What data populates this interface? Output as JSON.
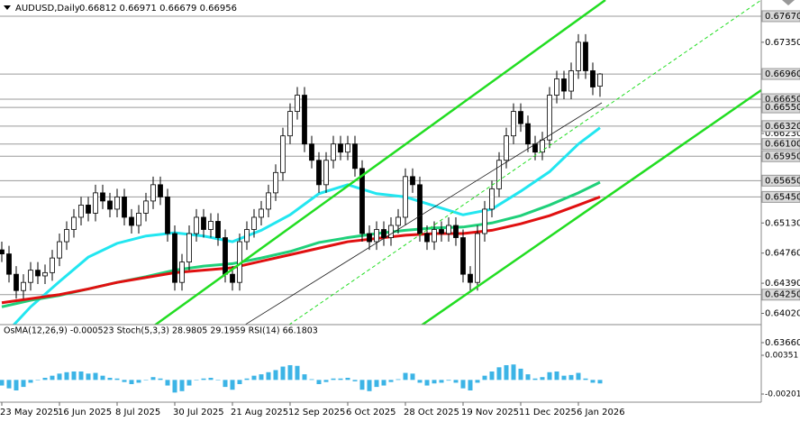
{
  "chart_data": [
    {
      "type": "candlestick",
      "title": "AUDUSD,Daily",
      "subtitle": "0.66812 0.66971 0.66679 0.66956",
      "categories": [
        "23 May 2025",
        null,
        null,
        null,
        null,
        null,
        null,
        null,
        "16 Jun 2025",
        null,
        null,
        null,
        null,
        null,
        null,
        null,
        "8 Jul 2025",
        null,
        null,
        null,
        null,
        null,
        null,
        null,
        "30 Jul 2025",
        null,
        null,
        null,
        null,
        null,
        null,
        null,
        "21 Aug 2025",
        null,
        null,
        null,
        null,
        null,
        null,
        null,
        "12 Sep 2025",
        null,
        null,
        null,
        null,
        null,
        null,
        null,
        "6 Oct 2025",
        null,
        null,
        null,
        null,
        null,
        null,
        null,
        "28 Oct 2025",
        null,
        null,
        null,
        null,
        null,
        null,
        null,
        "19 Nov 2025",
        null,
        null,
        null,
        null,
        null,
        null,
        null,
        "11 Dec 2025",
        null,
        null,
        null,
        null,
        null,
        null,
        null,
        "6 Jan 2026",
        null,
        null,
        null
      ],
      "open": [
        0.648,
        0.6475,
        0.645,
        0.643,
        0.644,
        0.6455,
        0.6448,
        0.6452,
        0.647,
        0.649,
        0.6505,
        0.652,
        0.6535,
        0.6525,
        0.655,
        0.654,
        0.653,
        0.6545,
        0.652,
        0.651,
        0.6525,
        0.654,
        0.656,
        0.6545,
        0.65,
        0.644,
        0.6465,
        0.65,
        0.652,
        0.6505,
        0.6515,
        0.6495,
        0.645,
        0.644,
        0.649,
        0.6505,
        0.652,
        0.653,
        0.655,
        0.6575,
        0.662,
        0.665,
        0.667,
        0.661,
        0.659,
        0.656,
        0.659,
        0.661,
        0.66,
        0.661,
        0.658,
        0.65,
        0.649,
        0.6505,
        0.6495,
        0.651,
        0.652,
        0.657,
        0.656,
        0.65,
        0.649,
        0.6505,
        0.65,
        0.651,
        0.6495,
        0.645,
        0.644,
        0.65,
        0.653,
        0.6555,
        0.659,
        0.662,
        0.665,
        0.6635,
        0.661,
        0.66,
        0.6615,
        0.667,
        0.669,
        0.6675,
        0.67,
        0.6735,
        0.67,
        0.6681
      ],
      "high": [
        0.649,
        0.6485,
        0.646,
        0.645,
        0.6465,
        0.6465,
        0.6462,
        0.648,
        0.65,
        0.6515,
        0.653,
        0.6545,
        0.6545,
        0.656,
        0.656,
        0.655,
        0.6555,
        0.6555,
        0.653,
        0.6535,
        0.655,
        0.657,
        0.657,
        0.6555,
        0.651,
        0.6475,
        0.651,
        0.653,
        0.653,
        0.6525,
        0.6525,
        0.6505,
        0.646,
        0.65,
        0.6515,
        0.653,
        0.654,
        0.656,
        0.6585,
        0.663,
        0.666,
        0.668,
        0.668,
        0.662,
        0.66,
        0.66,
        0.662,
        0.662,
        0.662,
        0.662,
        0.659,
        0.651,
        0.6515,
        0.6515,
        0.652,
        0.653,
        0.658,
        0.658,
        0.657,
        0.651,
        0.6515,
        0.6515,
        0.652,
        0.652,
        0.6505,
        0.646,
        0.651,
        0.654,
        0.6565,
        0.66,
        0.663,
        0.666,
        0.666,
        0.6645,
        0.662,
        0.6625,
        0.668,
        0.67,
        0.67,
        0.671,
        0.6745,
        0.6745,
        0.671,
        0.6697
      ],
      "low": [
        0.6465,
        0.644,
        0.642,
        0.642,
        0.643,
        0.6438,
        0.6438,
        0.6442,
        0.646,
        0.648,
        0.6495,
        0.651,
        0.6515,
        0.6515,
        0.653,
        0.652,
        0.652,
        0.651,
        0.65,
        0.65,
        0.6515,
        0.653,
        0.6535,
        0.649,
        0.643,
        0.643,
        0.6455,
        0.649,
        0.6495,
        0.6495,
        0.6485,
        0.644,
        0.643,
        0.643,
        0.648,
        0.6495,
        0.651,
        0.652,
        0.654,
        0.6565,
        0.661,
        0.664,
        0.66,
        0.658,
        0.655,
        0.655,
        0.658,
        0.659,
        0.659,
        0.657,
        0.649,
        0.648,
        0.648,
        0.6485,
        0.6485,
        0.65,
        0.651,
        0.655,
        0.649,
        0.648,
        0.648,
        0.649,
        0.649,
        0.6485,
        0.644,
        0.643,
        0.643,
        0.649,
        0.652,
        0.6545,
        0.658,
        0.661,
        0.6625,
        0.66,
        0.659,
        0.659,
        0.6605,
        0.666,
        0.6665,
        0.6665,
        0.669,
        0.669,
        0.667,
        0.6668
      ],
      "close": [
        0.6475,
        0.645,
        0.643,
        0.644,
        0.6455,
        0.6448,
        0.6452,
        0.647,
        0.649,
        0.6505,
        0.652,
        0.6535,
        0.6525,
        0.655,
        0.654,
        0.653,
        0.6545,
        0.652,
        0.651,
        0.6525,
        0.654,
        0.656,
        0.6545,
        0.65,
        0.644,
        0.6465,
        0.65,
        0.652,
        0.6505,
        0.6515,
        0.6495,
        0.645,
        0.644,
        0.649,
        0.6505,
        0.652,
        0.653,
        0.655,
        0.6575,
        0.662,
        0.665,
        0.667,
        0.661,
        0.659,
        0.656,
        0.659,
        0.661,
        0.66,
        0.661,
        0.658,
        0.65,
        0.649,
        0.6505,
        0.6495,
        0.651,
        0.652,
        0.657,
        0.656,
        0.65,
        0.649,
        0.6505,
        0.65,
        0.651,
        0.6495,
        0.645,
        0.644,
        0.65,
        0.653,
        0.6555,
        0.659,
        0.662,
        0.665,
        0.6635,
        0.661,
        0.66,
        0.6615,
        0.667,
        0.669,
        0.6675,
        0.67,
        0.6735,
        0.67,
        0.668,
        0.6696
      ],
      "ylim": [
        0.6366,
        0.67869
      ],
      "yticks": [
        {
          "value": 0.6735,
          "label": "0.67350"
        },
        {
          "value": 0.6623,
          "label": "0.66230"
        },
        {
          "value": 0.6513,
          "label": "0.65130"
        },
        {
          "value": 0.6476,
          "label": "0.64760"
        },
        {
          "value": 0.6439,
          "label": "0.64390"
        },
        {
          "value": 0.6402,
          "label": "0.64020"
        },
        {
          "value": 0.6366,
          "label": "0.63660"
        }
      ],
      "levels": [
        {
          "value": 0.6767,
          "label": "0.67670"
        },
        {
          "value": 0.6696,
          "label": "0.66960"
        },
        {
          "value": 0.6665,
          "label": "0.66650"
        },
        {
          "value": 0.6655,
          "label": "0.66550"
        },
        {
          "value": 0.6632,
          "label": "0.66320"
        },
        {
          "value": 0.661,
          "label": "0.66100"
        },
        {
          "value": 0.6595,
          "label": "0.65950"
        },
        {
          "value": 0.6565,
          "label": "0.65650"
        },
        {
          "value": 0.6545,
          "label": "0.65450"
        },
        {
          "value": 0.6425,
          "label": "0.64250"
        }
      ],
      "moving_averages": [
        {
          "color": "#22e6f0",
          "x": [
            0,
            4,
            8,
            12,
            16,
            20,
            24,
            28,
            32,
            36,
            40,
            44,
            48,
            52,
            56,
            60,
            64,
            68,
            72,
            76,
            80,
            83
          ],
          "values": [
            0.6372,
            0.641,
            0.6441,
            0.6471,
            0.6488,
            0.6497,
            0.6501,
            0.6497,
            0.649,
            0.6504,
            0.6523,
            0.6549,
            0.656,
            0.6549,
            0.6545,
            0.6534,
            0.6523,
            0.653,
            0.6552,
            0.6576,
            0.661,
            0.663
          ]
        },
        {
          "color": "#1fd07a",
          "x": [
            0,
            4,
            8,
            12,
            16,
            20,
            24,
            28,
            32,
            36,
            40,
            44,
            48,
            52,
            56,
            60,
            64,
            68,
            72,
            76,
            80,
            83
          ],
          "values": [
            0.641,
            0.6418,
            0.6424,
            0.6432,
            0.644,
            0.6447,
            0.6455,
            0.646,
            0.6463,
            0.647,
            0.6478,
            0.6489,
            0.6495,
            0.65,
            0.6504,
            0.6507,
            0.6508,
            0.6513,
            0.6522,
            0.6535,
            0.655,
            0.6563
          ]
        },
        {
          "color": "#e01010",
          "x": [
            0,
            4,
            8,
            12,
            16,
            20,
            24,
            28,
            32,
            36,
            40,
            44,
            48,
            52,
            56,
            60,
            64,
            68,
            72,
            76,
            80,
            83
          ],
          "values": [
            0.6415,
            0.642,
            0.6425,
            0.6432,
            0.644,
            0.6446,
            0.6452,
            0.6455,
            0.6458,
            0.6466,
            0.6474,
            0.6482,
            0.649,
            0.6494,
            0.6498,
            0.65,
            0.65,
            0.6504,
            0.6512,
            0.6522,
            0.6535,
            0.6545
          ]
        }
      ]
    },
    {
      "type": "bar",
      "title": "OsMA(12,26,9) -0.000523 Stoch(5,3,3) 28.9805 29.1959 RSI(14) 66.1803",
      "values": [
        -0.0008,
        -0.0012,
        -0.0015,
        -0.001,
        -0.0004,
        0.0,
        0.0003,
        0.0006,
        0.0009,
        0.0011,
        0.0012,
        0.0012,
        0.0009,
        0.001,
        0.0006,
        0.0003,
        0.0002,
        -0.0003,
        -0.0006,
        -0.0004,
        0.0,
        0.0004,
        0.0002,
        -0.0008,
        -0.0018,
        -0.0016,
        -0.0008,
        0.0,
        0.0002,
        0.0003,
        0.0,
        -0.001,
        -0.0014,
        -0.0006,
        0.0002,
        0.0006,
        0.0008,
        0.0011,
        0.0014,
        0.0019,
        0.0021,
        0.002,
        0.0008,
        0.0001,
        -0.0006,
        -0.0003,
        0.0002,
        0.0002,
        0.0003,
        -0.0002,
        -0.0014,
        -0.0016,
        -0.001,
        -0.0008,
        -0.0003,
        0.0001,
        0.001,
        0.0009,
        -0.0004,
        -0.0008,
        -0.0005,
        -0.0004,
        -0.0001,
        -0.0004,
        -0.0012,
        -0.0015,
        -0.0004,
        0.0006,
        0.0012,
        0.0018,
        0.0021,
        0.0022,
        0.0016,
        0.0008,
        0.0002,
        0.0004,
        0.0011,
        0.0012,
        0.0006,
        0.0007,
        0.001,
        0.0002,
        -0.0004,
        -0.0005
      ],
      "color": "#3cb4e6",
      "ylim": [
        -0.00317,
        0.00788
      ],
      "yticks": [
        0.00351,
        -0.002012
      ]
    }
  ]
}
